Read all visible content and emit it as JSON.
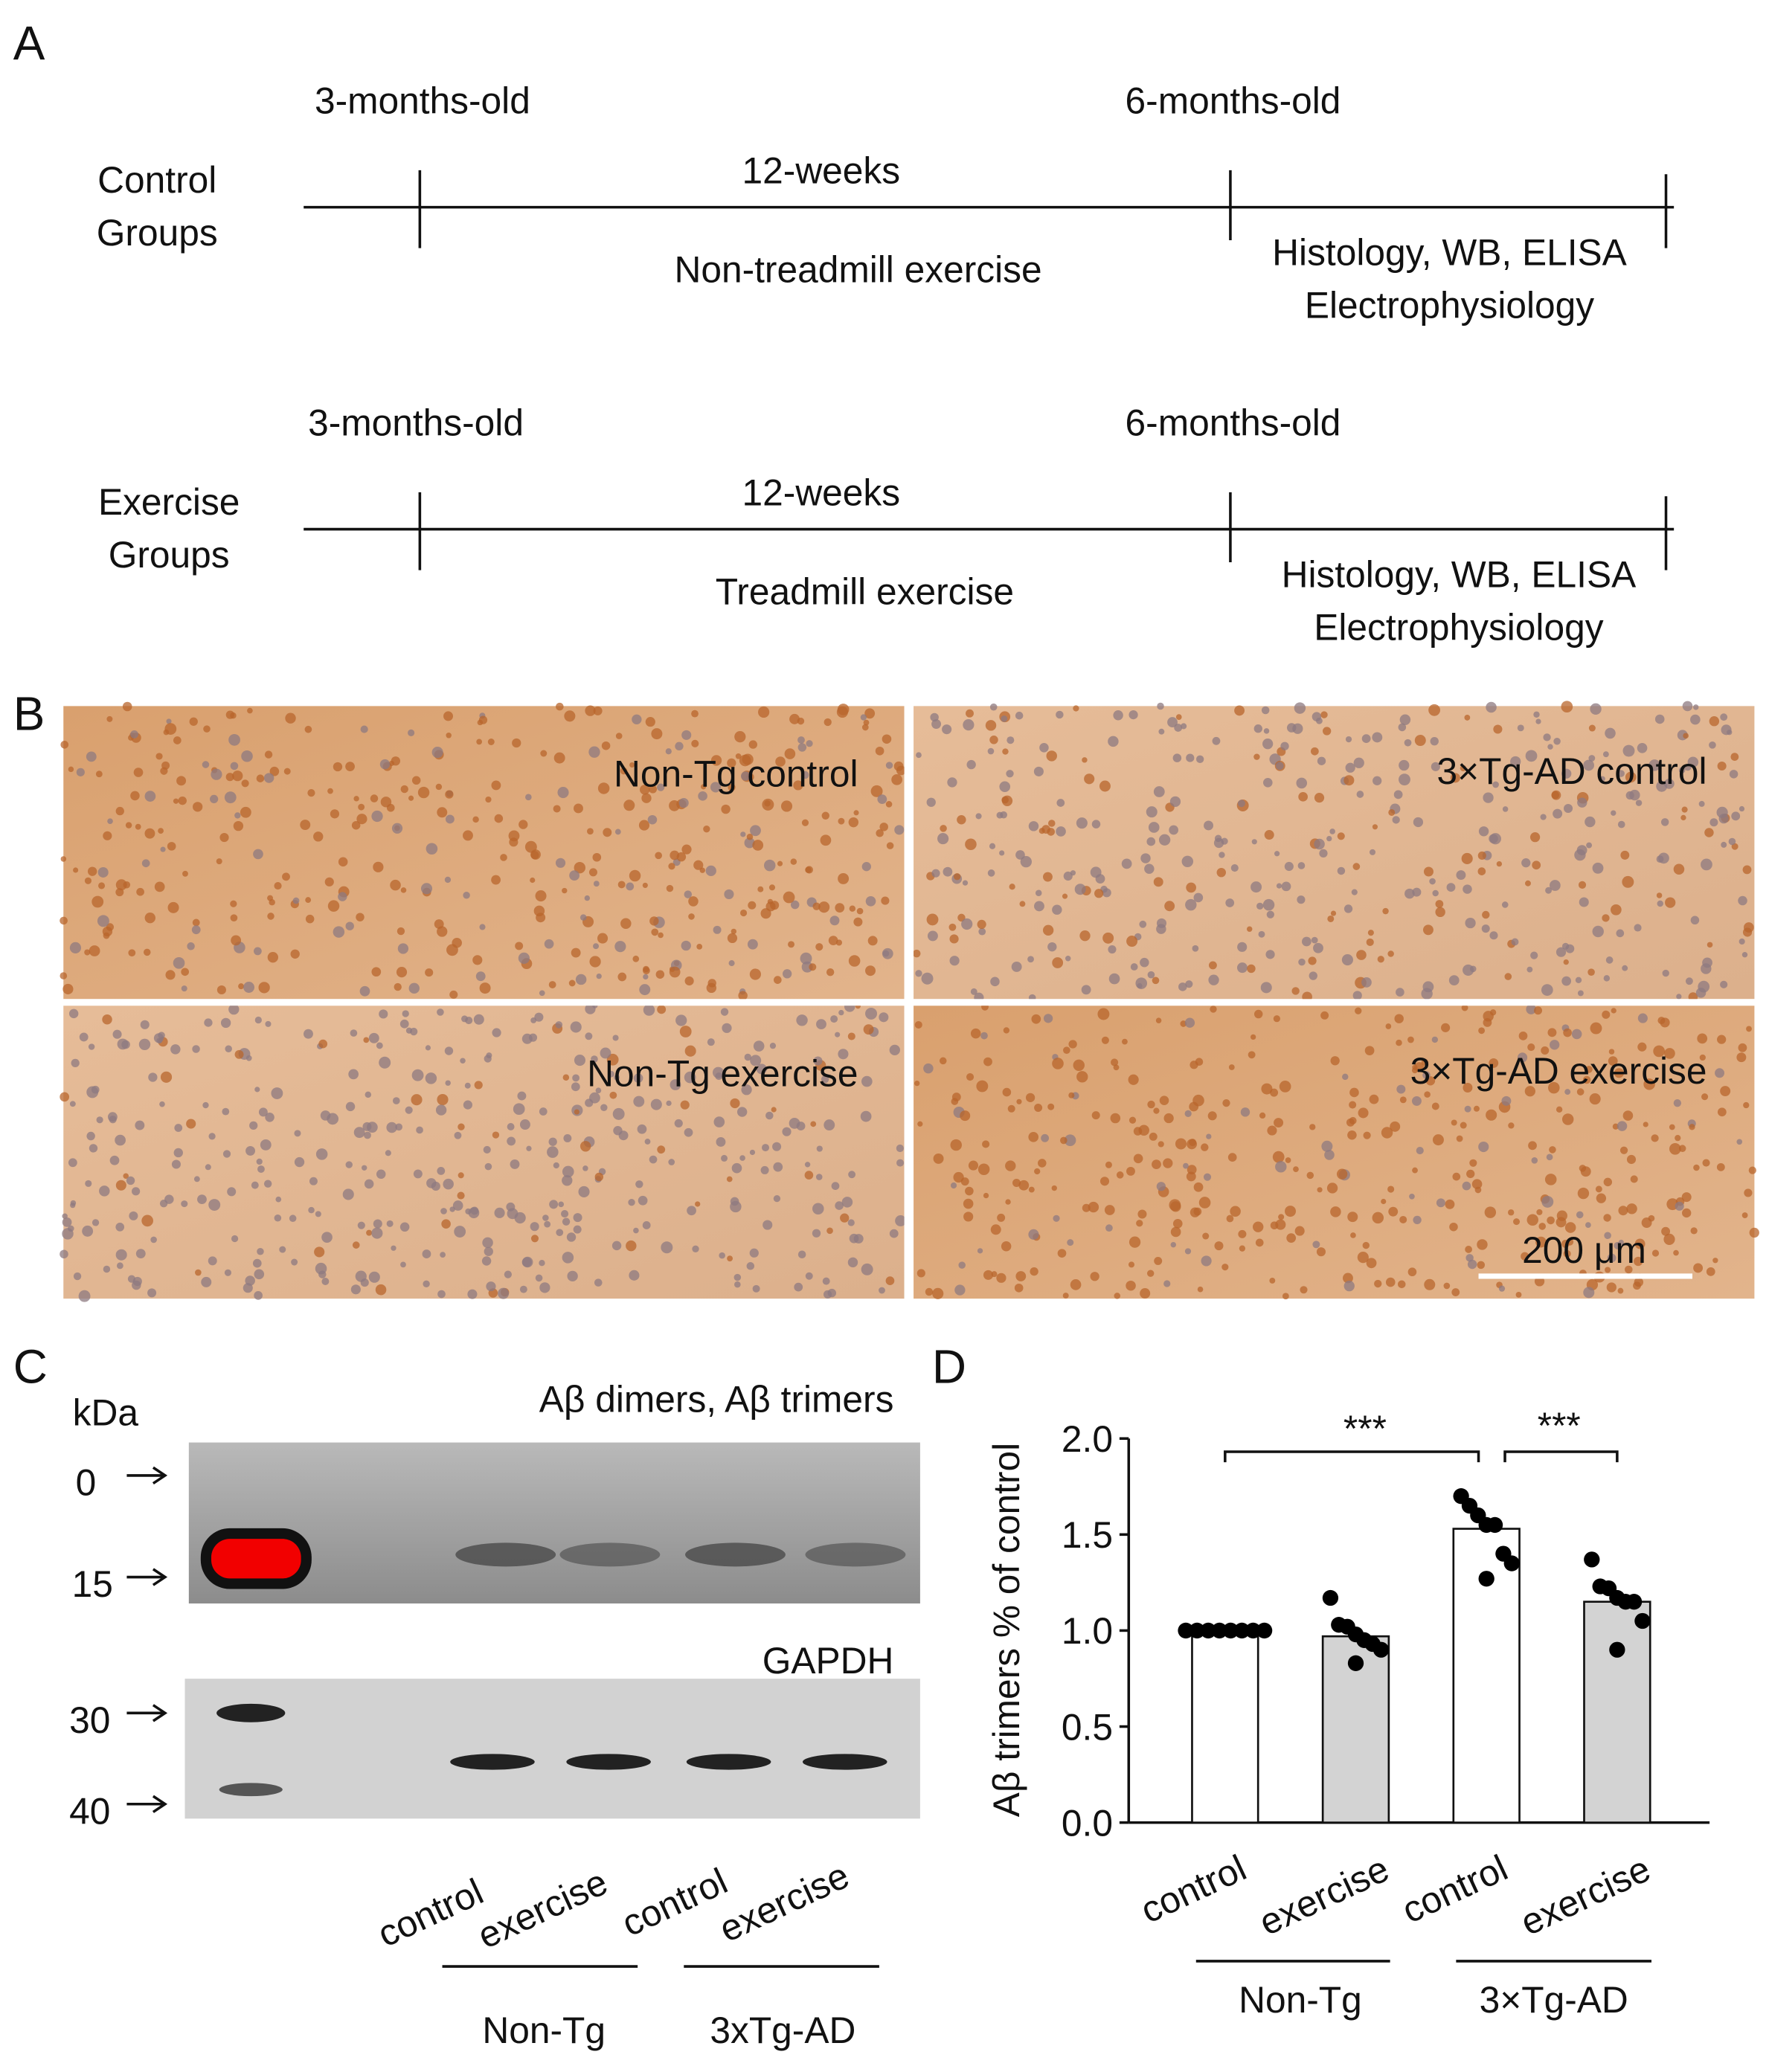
{
  "panel_a": {
    "letter": "A",
    "rows": [
      {
        "group_line1": "Control",
        "group_line2": "Groups",
        "start": "3-months-old",
        "end": "6-months-old",
        "duration": "12-weeks",
        "treatment": "Non-treadmill exercise",
        "assays_line1": "Histology, WB, ELISA",
        "assays_line2": "Electrophysiology"
      },
      {
        "group_line1": "Exercise",
        "group_line2": "Groups",
        "start": "3-months-old",
        "end": "6-months-old",
        "duration": "12-weeks",
        "treatment": "Treadmill exercise",
        "assays_line1": "Histology, WB, ELISA",
        "assays_line2": "Electrophysiology"
      }
    ]
  },
  "panel_b": {
    "letter": "B",
    "images": [
      "Non-Tg control",
      "3×Tg-AD control",
      "Non-Tg exercise",
      "3×Tg-AD exercise"
    ],
    "scale_bar": "200 μm"
  },
  "panel_c": {
    "letter": "C",
    "unit": "kDa",
    "top_label": "Aβ dimers, Aβ trimers",
    "bottom_label": "GAPDH",
    "markers": [
      "0",
      "15",
      "30",
      "40"
    ],
    "lanes": [
      "control",
      "exercise",
      "control",
      "exercise"
    ],
    "groups": [
      "Non-Tg",
      "3xTg-AD"
    ]
  },
  "chart_data": {
    "type": "bar",
    "letter": "D",
    "y_label": "Aβ trimers % of control",
    "categories": [
      "control",
      "exercise",
      "control",
      "exercise"
    ],
    "groups": [
      "Non-Tg",
      "3×Tg-AD"
    ],
    "values": [
      1.0,
      0.97,
      1.53,
      1.15
    ],
    "bar_colors": [
      "#ffffff",
      "#d3d3d3",
      "#ffffff",
      "#d3d3d3"
    ],
    "points": [
      [
        1.0,
        1.0,
        1.0,
        1.0,
        1.0,
        1.0,
        1.0,
        1.0
      ],
      [
        1.17,
        1.03,
        1.02,
        0.98,
        0.95,
        0.93,
        0.9,
        0.83
      ],
      [
        1.7,
        1.65,
        1.6,
        1.55,
        1.55,
        1.4,
        1.35,
        1.27
      ],
      [
        1.37,
        1.23,
        1.22,
        1.17,
        1.15,
        1.15,
        1.05,
        0.9
      ]
    ],
    "ylim": [
      0,
      2
    ],
    "yticks": [
      {
        "value": 0,
        "label": "0.0"
      },
      {
        "value": 0.5,
        "label": "0.5"
      },
      {
        "value": 1,
        "label": "1.0"
      },
      {
        "value": 1.5,
        "label": "1.5"
      },
      {
        "value": 2,
        "label": "2.0"
      }
    ],
    "significance": [
      "***",
      "***"
    ]
  }
}
